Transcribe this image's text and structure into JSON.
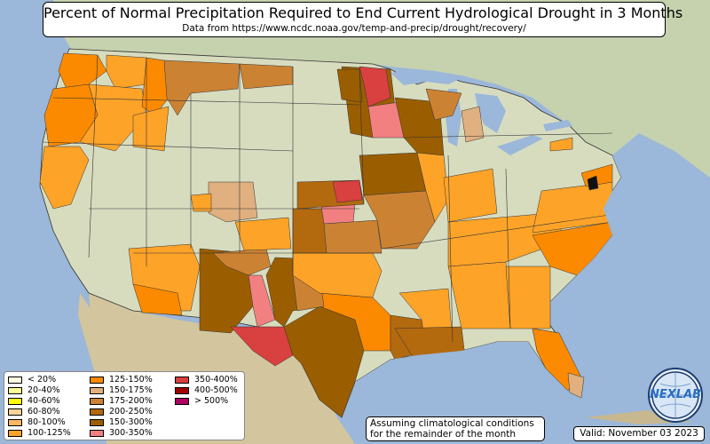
{
  "title": "Percent of Normal Precipitation Required to End Current Hydrological Drought in 3 Months",
  "subtitle": "Data from https://www.ncdc.noaa.gov/temp-and-precip/drought/recovery/",
  "legend": [
    {
      "label": "< 20%",
      "color": "#ffffe0"
    },
    {
      "label": "20-40%",
      "color": "#ffff99"
    },
    {
      "label": "40-60%",
      "color": "#ffff00"
    },
    {
      "label": "60-80%",
      "color": "#ffd59a"
    },
    {
      "label": "80-100%",
      "color": "#fdb862"
    },
    {
      "label": "100-125%",
      "color": "#fda328"
    },
    {
      "label": "125-150%",
      "color": "#fb8a00"
    },
    {
      "label": "150-175%",
      "color": "#e0b080"
    },
    {
      "label": "175-200%",
      "color": "#cc8233"
    },
    {
      "label": "200-250%",
      "color": "#b3690e"
    },
    {
      "label": "150-300%",
      "color": "#9a5e00"
    },
    {
      "label": "300-350%",
      "color": "#f28080"
    },
    {
      "label": "350-400%",
      "color": "#d94040"
    },
    {
      "label": "400-500%",
      "color": "#a00000"
    },
    {
      "label": "> 500%",
      "color": "#b00060"
    }
  ],
  "note_line1": "Assuming climatological conditions",
  "note_line2": "for the remainder of the month",
  "valid_text": "Valid: November 03 2023",
  "logo_text": "NEXLAB",
  "colors": {
    "ocean": "#9bb7d9",
    "land": "#d7dcc0",
    "canada": "#c8d2b0",
    "mexico": "#d2c49c"
  }
}
